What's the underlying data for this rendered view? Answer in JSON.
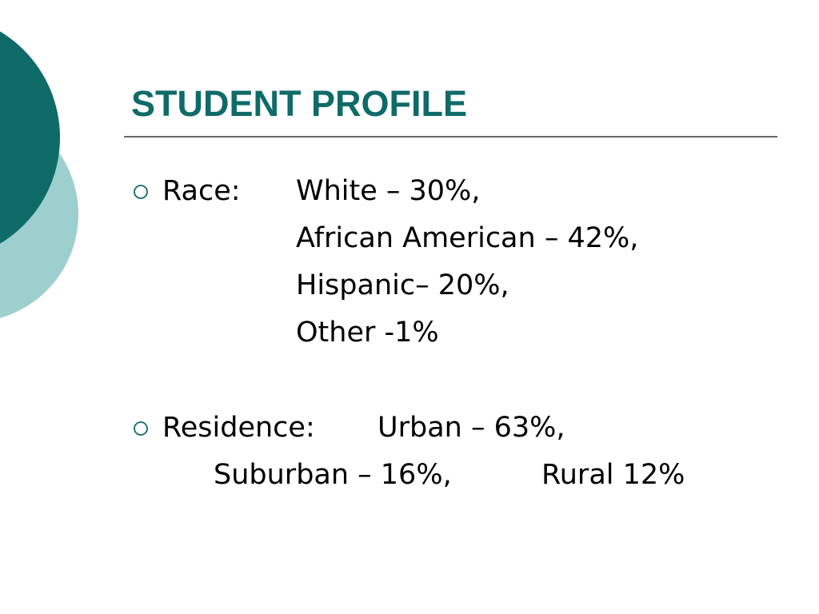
{
  "title": "STUDENT PROFILE",
  "bullets": [
    {
      "label": "Race:",
      "items": [
        "White – 30%,",
        "African American – 42%,",
        "Hispanic– 20%,",
        "Other -1%"
      ]
    },
    {
      "label": "Residence:",
      "items": [
        "Urban – 63%,",
        "Suburban – 16%,",
        "Rural 12%"
      ]
    }
  ]
}
